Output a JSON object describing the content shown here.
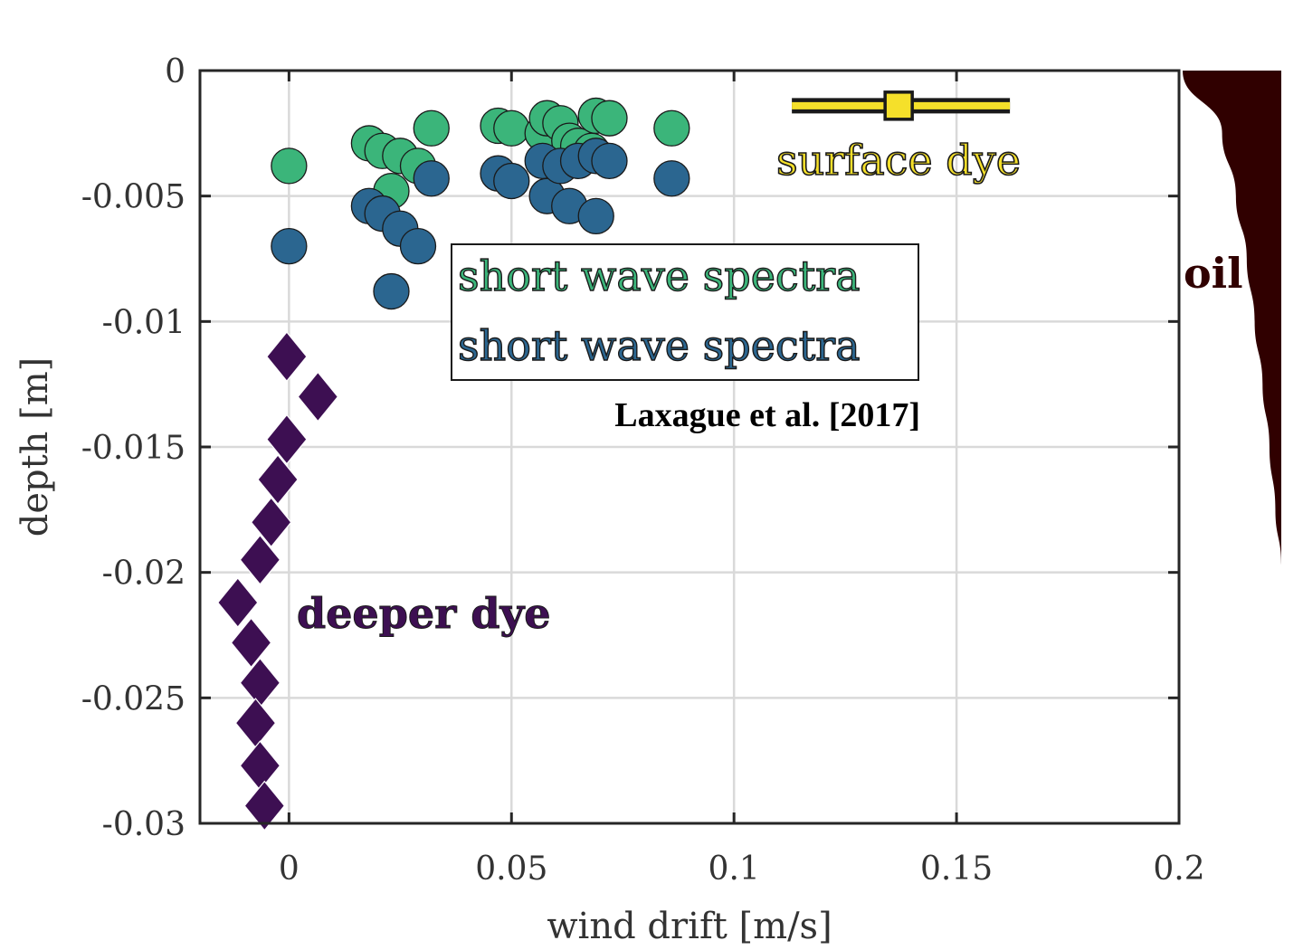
{
  "chart_data": {
    "type": "scatter",
    "xlabel": "wind drift [m/s]",
    "ylabel": "depth [m]",
    "xlim": [
      -0.02,
      0.2
    ],
    "ylim": [
      -0.03,
      0
    ],
    "grid": true,
    "x_ticks": [
      {
        "value": 0,
        "label": "0"
      },
      {
        "value": 0.05,
        "label": "0.05"
      },
      {
        "value": 0.1,
        "label": "0.1"
      },
      {
        "value": 0.15,
        "label": "0.15"
      },
      {
        "value": 0.2,
        "label": "0.2"
      }
    ],
    "y_ticks": [
      {
        "value": 0,
        "label": "0"
      },
      {
        "value": -0.005,
        "label": "-0.005"
      },
      {
        "value": -0.01,
        "label": "-0.01"
      },
      {
        "value": -0.015,
        "label": "-0.015"
      },
      {
        "value": -0.02,
        "label": "-0.02"
      },
      {
        "value": -0.025,
        "label": "-0.025"
      },
      {
        "value": -0.03,
        "label": "-0.03"
      }
    ],
    "series": [
      {
        "name": "short wave spectra (green)",
        "marker": "circle",
        "color": "#3bb57a",
        "points": [
          {
            "x": 0.0,
            "y": -0.0038
          },
          {
            "x": 0.018,
            "y": -0.0029
          },
          {
            "x": 0.021,
            "y": -0.0032
          },
          {
            "x": 0.023,
            "y": -0.0048
          },
          {
            "x": 0.025,
            "y": -0.0034
          },
          {
            "x": 0.029,
            "y": -0.0038
          },
          {
            "x": 0.032,
            "y": -0.0023
          },
          {
            "x": 0.047,
            "y": -0.0022
          },
          {
            "x": 0.05,
            "y": -0.0023
          },
          {
            "x": 0.057,
            "y": -0.0025
          },
          {
            "x": 0.058,
            "y": -0.0019
          },
          {
            "x": 0.061,
            "y": -0.0021
          },
          {
            "x": 0.063,
            "y": -0.0028
          },
          {
            "x": 0.065,
            "y": -0.003
          },
          {
            "x": 0.068,
            "y": -0.0032
          },
          {
            "x": 0.069,
            "y": -0.0018
          },
          {
            "x": 0.072,
            "y": -0.0019
          },
          {
            "x": 0.086,
            "y": -0.0023
          }
        ]
      },
      {
        "name": "short wave spectra (blue)",
        "marker": "circle",
        "color": "#2b6690",
        "points": [
          {
            "x": 0.0,
            "y": -0.007
          },
          {
            "x": 0.018,
            "y": -0.0054
          },
          {
            "x": 0.021,
            "y": -0.0057
          },
          {
            "x": 0.023,
            "y": -0.0088
          },
          {
            "x": 0.025,
            "y": -0.0063
          },
          {
            "x": 0.029,
            "y": -0.007
          },
          {
            "x": 0.032,
            "y": -0.0043
          },
          {
            "x": 0.047,
            "y": -0.0041
          },
          {
            "x": 0.05,
            "y": -0.0044
          },
          {
            "x": 0.057,
            "y": -0.0036
          },
          {
            "x": 0.058,
            "y": -0.005
          },
          {
            "x": 0.061,
            "y": -0.0038
          },
          {
            "x": 0.063,
            "y": -0.0054
          },
          {
            "x": 0.065,
            "y": -0.0036
          },
          {
            "x": 0.069,
            "y": -0.0058
          },
          {
            "x": 0.069,
            "y": -0.0034
          },
          {
            "x": 0.072,
            "y": -0.0036
          },
          {
            "x": 0.086,
            "y": -0.0043
          }
        ]
      },
      {
        "name": "deeper dye",
        "marker": "diamond",
        "color": "#3d0f52",
        "points": [
          {
            "x": -0.0005,
            "y": -0.0114
          },
          {
            "x": 0.0065,
            "y": -0.013
          },
          {
            "x": -0.0005,
            "y": -0.0147
          },
          {
            "x": -0.0025,
            "y": -0.0163
          },
          {
            "x": -0.004,
            "y": -0.018
          },
          {
            "x": -0.0065,
            "y": -0.0195
          },
          {
            "x": -0.0115,
            "y": -0.0212
          },
          {
            "x": -0.0085,
            "y": -0.0228
          },
          {
            "x": -0.0065,
            "y": -0.0244
          },
          {
            "x": -0.0075,
            "y": -0.026
          },
          {
            "x": -0.0065,
            "y": -0.0277
          },
          {
            "x": -0.0055,
            "y": -0.0293
          }
        ]
      }
    ],
    "surface_dye": {
      "x": 0.137,
      "y": -0.0014,
      "x_err_low": 0.113,
      "x_err_high": 0.162,
      "color": "#f5e02a"
    },
    "oil_profile": {
      "color": "#300000",
      "depths": [
        0,
        -0.0025,
        -0.005,
        -0.0075,
        -0.01,
        -0.0125,
        -0.015,
        -0.0175,
        -0.0197
      ],
      "widths_frac": [
        1.0,
        0.6,
        0.46,
        0.35,
        0.27,
        0.19,
        0.12,
        0.06,
        0.0
      ]
    },
    "annotations": {
      "surface_dye": "surface dye",
      "legend_green": "short wave spectra",
      "legend_blue": "short wave spectra",
      "reference": "Laxague et al. [2017]",
      "deeper_dye": "deeper dye",
      "oil": "oil"
    }
  }
}
